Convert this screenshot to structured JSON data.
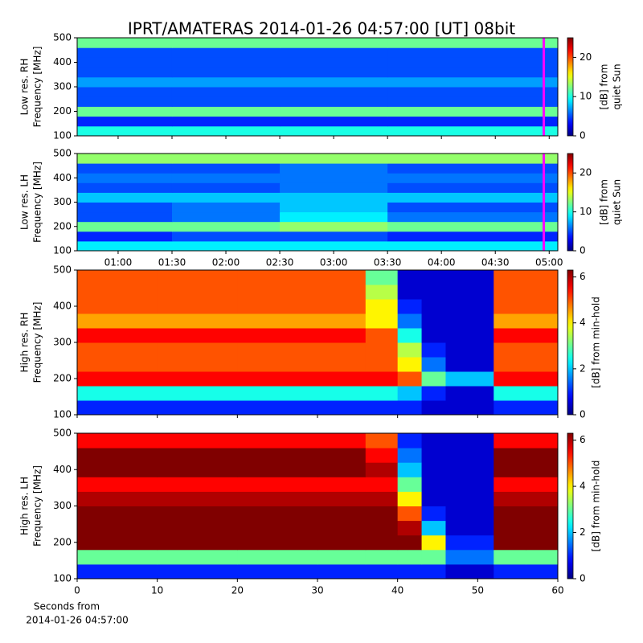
{
  "chart_data": [
    {
      "type": "heatmap",
      "title": "IPRT/AMATERAS 2014-01-26 04:57:00 [UT]   08bit",
      "ylabel": [
        "Low res. RH",
        "Frequency [MHz]"
      ],
      "colorbar_label": [
        "[dB] from",
        "quiet Sun"
      ],
      "colormap": "jet",
      "clim": [
        0,
        25
      ],
      "cticks": [
        0,
        10,
        20
      ],
      "xlim": [
        0.62,
        5.08
      ],
      "xticks": [
        1.0,
        1.5,
        2.0,
        2.5,
        3.0,
        3.5,
        4.0,
        4.5,
        5.0
      ],
      "ylim": [
        100,
        500
      ],
      "yticks": [
        100,
        200,
        300,
        400,
        500
      ],
      "marker_x": 4.95,
      "marker_color": "#ff00ff",
      "xbins": [
        0.62,
        1.5,
        2.5,
        3.5,
        5.08
      ],
      "ybins": [
        100,
        140,
        180,
        220,
        260,
        300,
        340,
        380,
        420,
        460,
        500
      ],
      "z": [
        [
          10,
          10,
          10,
          10
        ],
        [
          4,
          4,
          4,
          4
        ],
        [
          12,
          12,
          12,
          12
        ],
        [
          5,
          5,
          5,
          5
        ],
        [
          5,
          5,
          5,
          5
        ],
        [
          7,
          7,
          7,
          7
        ],
        [
          5,
          5,
          5,
          5
        ],
        [
          5,
          5,
          5,
          5
        ],
        [
          5,
          5,
          5,
          5
        ],
        [
          12,
          12,
          12,
          12
        ]
      ]
    },
    {
      "type": "heatmap",
      "ylabel": [
        "Low res. LH",
        "Frequency [MHz]"
      ],
      "colorbar_label": [
        "[dB] from",
        "quiet Sun"
      ],
      "colormap": "jet",
      "clim": [
        0,
        25
      ],
      "cticks": [
        0,
        10,
        20
      ],
      "xlim": [
        0.62,
        5.08
      ],
      "xticks": [
        {
          "value": 1.0,
          "label": "01:00"
        },
        {
          "value": 1.5,
          "label": "01:30"
        },
        {
          "value": 2.0,
          "label": "02:00"
        },
        {
          "value": 2.5,
          "label": "02:30"
        },
        {
          "value": 3.0,
          "label": "03:00"
        },
        {
          "value": 3.5,
          "label": "03:30"
        },
        {
          "value": 4.0,
          "label": "04:00"
        },
        {
          "value": 4.5,
          "label": "04:30"
        },
        {
          "value": 5.0,
          "label": "05:00"
        }
      ],
      "ylim": [
        100,
        500
      ],
      "yticks": [
        100,
        200,
        300,
        400,
        500
      ],
      "marker_x": 4.95,
      "marker_color": "#ff00ff",
      "xbins": [
        0.62,
        1.5,
        2.5,
        3.5,
        5.08
      ],
      "ybins": [
        100,
        140,
        180,
        220,
        260,
        300,
        340,
        380,
        420,
        460,
        500
      ],
      "z": [
        [
          9,
          9,
          9,
          9
        ],
        [
          4,
          5,
          5,
          4
        ],
        [
          12,
          12,
          13,
          12
        ],
        [
          5,
          6,
          9,
          6
        ],
        [
          5,
          6,
          8,
          5
        ],
        [
          8,
          8,
          8,
          8
        ],
        [
          5,
          5,
          6,
          5
        ],
        [
          6,
          6,
          6,
          6
        ],
        [
          5,
          5,
          6,
          5
        ],
        [
          13,
          13,
          13,
          13
        ]
      ]
    },
    {
      "type": "heatmap",
      "ylabel": [
        "High res. RH",
        "Frequency [MHz]"
      ],
      "colorbar_label": [
        "[dB] from min-hold"
      ],
      "colormap": "jet",
      "clim": [
        0,
        6.3
      ],
      "cticks": [
        0,
        2,
        4,
        6
      ],
      "xlim": [
        0,
        60
      ],
      "xticks": [
        0,
        10,
        20,
        30,
        40,
        50,
        60
      ],
      "ylim": [
        100,
        500
      ],
      "yticks": [
        100,
        200,
        300,
        400,
        500
      ],
      "xbins": [
        0,
        10,
        20,
        30,
        36,
        40,
        43,
        46,
        52,
        56,
        60
      ],
      "ybins": [
        100,
        140,
        180,
        220,
        260,
        300,
        340,
        380,
        420,
        460,
        500
      ],
      "z": [
        [
          1,
          1,
          1,
          1,
          1,
          1,
          0.5,
          0.5,
          1,
          1
        ],
        [
          2.5,
          2.5,
          2.5,
          2.5,
          2.5,
          2,
          1,
          0.5,
          2.5,
          2.5
        ],
        [
          5.5,
          5.5,
          5.5,
          5.5,
          5.5,
          5,
          3,
          2,
          5.5,
          5.5
        ],
        [
          5,
          5,
          5,
          5,
          5,
          4,
          1.5,
          0.5,
          5,
          5
        ],
        [
          5,
          5,
          5,
          5,
          5,
          3.5,
          1,
          0.5,
          5,
          5
        ],
        [
          5.5,
          5.5,
          5.5,
          5.5,
          5,
          2.5,
          0.5,
          0.5,
          5.5,
          5.5
        ],
        [
          4.5,
          4.5,
          4.5,
          4.5,
          4,
          1.5,
          0.5,
          0.5,
          4.5,
          4.5
        ],
        [
          5,
          5,
          5,
          5,
          4,
          1,
          0.5,
          0.5,
          5,
          5
        ],
        [
          5,
          5,
          5,
          5,
          3.5,
          0.5,
          0.5,
          0.5,
          5,
          5
        ],
        [
          5,
          5,
          5,
          5,
          3,
          0.5,
          0.5,
          0.5,
          5,
          5
        ]
      ]
    },
    {
      "type": "heatmap",
      "ylabel": [
        "High res. LH",
        "Frequency [MHz]"
      ],
      "colorbar_label": [
        "[dB] from min-hold"
      ],
      "xlabel": [
        "Seconds from",
        "2014-01-26 04:57:00"
      ],
      "colormap": "jet",
      "clim": [
        0,
        6.3
      ],
      "cticks": [
        0,
        2,
        4,
        6
      ],
      "xlim": [
        0,
        60
      ],
      "xticks": [
        0,
        10,
        20,
        30,
        40,
        50,
        60
      ],
      "ylim": [
        100,
        500
      ],
      "yticks": [
        100,
        200,
        300,
        400,
        500
      ],
      "xbins": [
        0,
        10,
        20,
        30,
        36,
        40,
        43,
        46,
        52,
        56,
        60
      ],
      "ybins": [
        100,
        140,
        180,
        220,
        260,
        300,
        340,
        380,
        420,
        460,
        500
      ],
      "z": [
        [
          1,
          1,
          1,
          1,
          1,
          1,
          1,
          0.5,
          1,
          1
        ],
        [
          3,
          3,
          3,
          3,
          3,
          3,
          3,
          1.5,
          3,
          3
        ],
        [
          6.3,
          6.3,
          6.3,
          6.3,
          6.3,
          6.3,
          4,
          1,
          6.3,
          6.3
        ],
        [
          6.3,
          6.3,
          6.3,
          6.3,
          6.3,
          6,
          2,
          0.5,
          6.3,
          6.3
        ],
        [
          6.3,
          6.3,
          6.3,
          6.3,
          6.3,
          5,
          1,
          0.5,
          6.3,
          6.3
        ],
        [
          6,
          6,
          6,
          6,
          6,
          4,
          0.5,
          0.5,
          6,
          6
        ],
        [
          5.5,
          5.5,
          5.5,
          5.5,
          5.5,
          3,
          0.5,
          0.5,
          5.5,
          5.5
        ],
        [
          6.3,
          6.3,
          6.3,
          6.3,
          6,
          2,
          0.5,
          0.5,
          6.3,
          6.3
        ],
        [
          6.3,
          6.3,
          6.3,
          6.3,
          5.5,
          1.5,
          0.5,
          0.5,
          6.3,
          6.3
        ],
        [
          5.5,
          5.5,
          5.5,
          5.5,
          5,
          1,
          0.5,
          0.5,
          5.5,
          5.5
        ]
      ]
    }
  ]
}
